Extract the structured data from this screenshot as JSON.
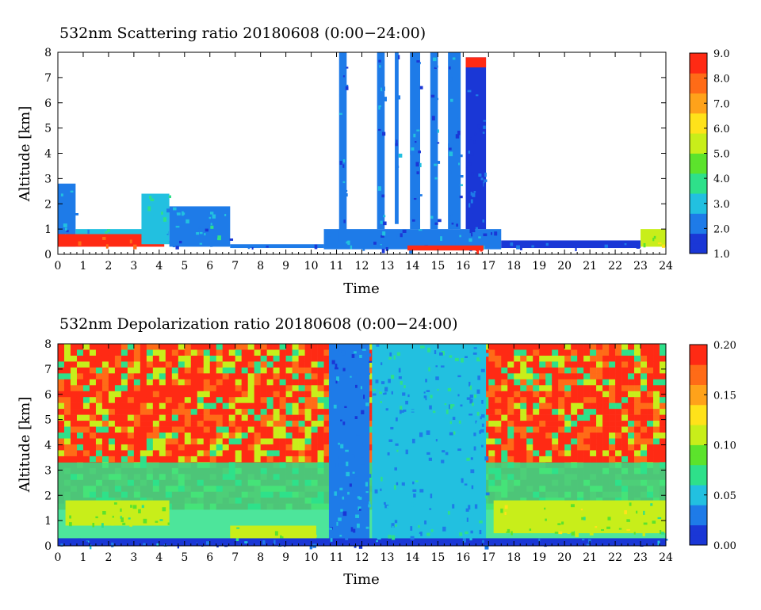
{
  "colors": {
    "colormap": [
      "#1a37d6",
      "#1e7be8",
      "#22c0e0",
      "#2ee08a",
      "#5ce32c",
      "#c8ee1a",
      "#ffe21a",
      "#ffa21a",
      "#ff6b17",
      "#ff2a14"
    ],
    "background": "#ffffff"
  },
  "chart_data": [
    {
      "type": "heatmap",
      "title": "532nm  Scattering ratio   20180608  (0:00−24:00)",
      "xlabel": "Time",
      "ylabel": "Altitude [km]",
      "xlim": [
        0,
        24
      ],
      "ylim": [
        0,
        8
      ],
      "x_ticks": [
        "0",
        "1",
        "2",
        "3",
        "4",
        "5",
        "6",
        "7",
        "8",
        "9",
        "10",
        "11",
        "12",
        "13",
        "14",
        "15",
        "16",
        "17",
        "18",
        "19",
        "20",
        "21",
        "22",
        "23",
        "24"
      ],
      "y_ticks": [
        "0",
        "1",
        "2",
        "3",
        "4",
        "5",
        "6",
        "7",
        "8"
      ],
      "colorbar": {
        "min": 1.0,
        "max": 9.0,
        "labels": [
          "1.0",
          "2.0",
          "3.0",
          "4.0",
          "5.0",
          "6.0",
          "7.0",
          "8.0",
          "9.0"
        ]
      },
      "features": {
        "boundary_layer": [
          {
            "t0": 0.0,
            "t1": 0.7,
            "bottom": 0.3,
            "top": 2.8,
            "value": 2.5
          },
          {
            "t0": 0.0,
            "t1": 4.2,
            "bottom": 0.3,
            "top": 0.8,
            "value": 8.2
          },
          {
            "t0": 0.7,
            "t1": 4.3,
            "bottom": 0.8,
            "top": 1.0,
            "value": 3.0
          },
          {
            "t0": 3.3,
            "t1": 4.4,
            "bottom": 0.4,
            "top": 2.4,
            "value": 3.2
          },
          {
            "t0": 4.4,
            "t1": 6.8,
            "bottom": 0.3,
            "top": 1.9,
            "value": 2.5
          },
          {
            "t0": 6.8,
            "t1": 10.5,
            "bottom": 0.25,
            "top": 0.4,
            "value": 1.8
          },
          {
            "t0": 10.5,
            "t1": 17.5,
            "bottom": 0.2,
            "top": 1.0,
            "value": 2.2
          },
          {
            "t0": 13.8,
            "t1": 16.8,
            "bottom": 0.15,
            "top": 0.35,
            "value": 8.5
          },
          {
            "t0": 17.5,
            "t1": 23.0,
            "bottom": 0.25,
            "top": 0.55,
            "value": 1.6
          },
          {
            "t0": 23.0,
            "t1": 24.0,
            "bottom": 0.3,
            "top": 1.0,
            "value": 5.5
          }
        ],
        "cloud_columns": [
          {
            "t0": 11.1,
            "t1": 11.4,
            "bottom": 0.5,
            "top": 8.0,
            "value": 2.0
          },
          {
            "t0": 12.6,
            "t1": 12.9,
            "bottom": 1.0,
            "top": 8.0,
            "value": 2.2
          },
          {
            "t0": 13.3,
            "t1": 13.45,
            "bottom": 1.2,
            "top": 8.0,
            "value": 2.0
          },
          {
            "t0": 13.9,
            "t1": 14.3,
            "bottom": 1.0,
            "top": 8.0,
            "value": 2.0
          },
          {
            "t0": 14.7,
            "t1": 15.0,
            "bottom": 1.0,
            "top": 8.0,
            "value": 2.0
          },
          {
            "t0": 15.4,
            "t1": 15.9,
            "bottom": 1.0,
            "top": 8.0,
            "value": 2.0
          },
          {
            "t0": 16.1,
            "t1": 16.9,
            "bottom": 1.0,
            "top": 7.8,
            "value": 1.6
          }
        ],
        "cloud_top_layer": {
          "t0": 16.1,
          "t1": 16.9,
          "bottom": 7.4,
          "top": 7.8,
          "value": 8.5
        }
      }
    },
    {
      "type": "heatmap",
      "title": "532nm  Depolarization ratio   20180608  (0:00−24:00)",
      "xlabel": "Time",
      "ylabel": "Altitude [km]",
      "xlim": [
        0,
        24
      ],
      "ylim": [
        0,
        8
      ],
      "x_ticks": [
        "0",
        "1",
        "2",
        "3",
        "4",
        "5",
        "6",
        "7",
        "8",
        "9",
        "10",
        "11",
        "12",
        "13",
        "14",
        "15",
        "16",
        "17",
        "18",
        "19",
        "20",
        "21",
        "22",
        "23",
        "24"
      ],
      "y_ticks": [
        "0",
        "1",
        "2",
        "3",
        "4",
        "5",
        "6",
        "7",
        "8"
      ],
      "colorbar": {
        "min": 0.0,
        "max": 0.2,
        "labels": [
          "0.00",
          "0.05",
          "0.10",
          "0.15",
          "0.20"
        ]
      },
      "features": {
        "noisy_upper_value": 0.2,
        "boundary_layer": [
          {
            "t0": 0.0,
            "t1": 24.0,
            "bottom": 0.0,
            "top": 0.3,
            "value": 0.02
          },
          {
            "t0": 0.3,
            "t1": 4.4,
            "bottom": 0.8,
            "top": 1.8,
            "value": 0.1
          },
          {
            "t0": 6.8,
            "t1": 10.2,
            "bottom": 0.3,
            "top": 0.8,
            "value": 0.1
          },
          {
            "t0": 17.2,
            "t1": 24.0,
            "bottom": 0.5,
            "top": 1.8,
            "value": 0.1
          }
        ],
        "cloud_columns": [
          {
            "t0": 10.7,
            "t1": 12.3,
            "bottom": 0.3,
            "top": 8.0,
            "value": 0.035
          },
          {
            "t0": 12.4,
            "t1": 16.9,
            "bottom": 0.3,
            "top": 8.0,
            "value": 0.045
          }
        ]
      }
    }
  ]
}
